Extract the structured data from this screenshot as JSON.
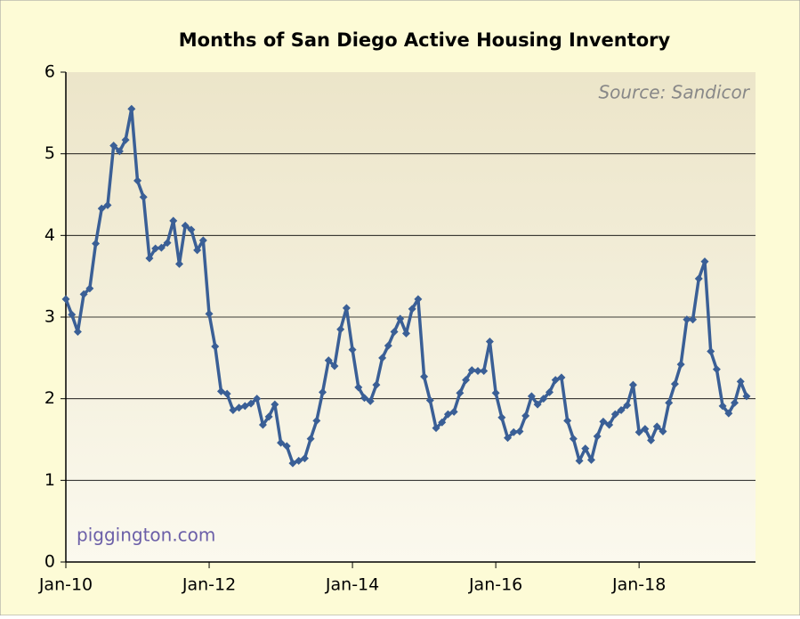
{
  "chart_data": {
    "type": "line",
    "title": "Months of San Diego Active Housing Inventory",
    "source": "Source: Sandicor",
    "watermark": "piggington.com",
    "categories": [
      "Jan-10",
      null,
      null,
      null,
      null,
      null,
      null,
      null,
      null,
      null,
      null,
      null,
      null,
      null,
      null,
      null,
      null,
      null,
      null,
      null,
      null,
      null,
      null,
      null,
      "Jan-12",
      null,
      null,
      null,
      null,
      null,
      null,
      null,
      null,
      null,
      null,
      null,
      null,
      null,
      null,
      null,
      null,
      null,
      null,
      null,
      null,
      null,
      null,
      null,
      "Jan-14",
      null,
      null,
      null,
      null,
      null,
      null,
      null,
      null,
      null,
      null,
      null,
      null,
      null,
      null,
      null,
      null,
      null,
      null,
      null,
      null,
      null,
      null,
      null,
      "Jan-16",
      null,
      null,
      null,
      null,
      null,
      null,
      null,
      null,
      null,
      null,
      null,
      null,
      null,
      null,
      null,
      null,
      null,
      null,
      null,
      null,
      null,
      null,
      null,
      "Jan-18",
      null,
      null,
      null,
      null,
      null,
      null,
      null,
      null,
      null,
      null,
      null,
      null,
      null,
      null,
      null,
      null,
      null,
      null
    ],
    "series": [
      {
        "color": "#3a5f96",
        "values": [
          3.22,
          3.03,
          2.82,
          3.28,
          3.35,
          3.9,
          4.33,
          4.37,
          5.1,
          5.03,
          5.17,
          5.55,
          4.67,
          4.47,
          3.72,
          3.84,
          3.85,
          3.91,
          4.18,
          3.65,
          4.12,
          4.07,
          3.82,
          3.94,
          3.04,
          2.64,
          2.09,
          2.06,
          1.86,
          1.89,
          1.91,
          1.94,
          2.0,
          1.68,
          1.78,
          1.93,
          1.46,
          1.42,
          1.21,
          1.24,
          1.27,
          1.51,
          1.73,
          2.08,
          2.47,
          2.4,
          2.85,
          3.11,
          2.6,
          2.14,
          2.01,
          1.97,
          2.17,
          2.5,
          2.65,
          2.82,
          2.98,
          2.8,
          3.1,
          3.22,
          2.27,
          1.98,
          1.64,
          1.71,
          1.81,
          1.84,
          2.07,
          2.23,
          2.35,
          2.34,
          2.34,
          2.7,
          2.07,
          1.77,
          1.52,
          1.59,
          1.6,
          1.79,
          2.03,
          1.93,
          2.0,
          2.08,
          2.23,
          2.26,
          1.73,
          1.51,
          1.24,
          1.39,
          1.25,
          1.54,
          1.72,
          1.68,
          1.81,
          1.86,
          1.92,
          2.17,
          1.59,
          1.63,
          1.49,
          1.66,
          1.6,
          1.95,
          2.18,
          2.42,
          2.97,
          2.97,
          3.47,
          3.68,
          2.58,
          2.36,
          1.91,
          1.82,
          1.95,
          2.21,
          2.03
        ]
      }
    ],
    "ylim": [
      0,
      6
    ],
    "yticks": [
      0,
      1,
      2,
      3,
      4,
      5,
      6
    ],
    "grid": true
  }
}
